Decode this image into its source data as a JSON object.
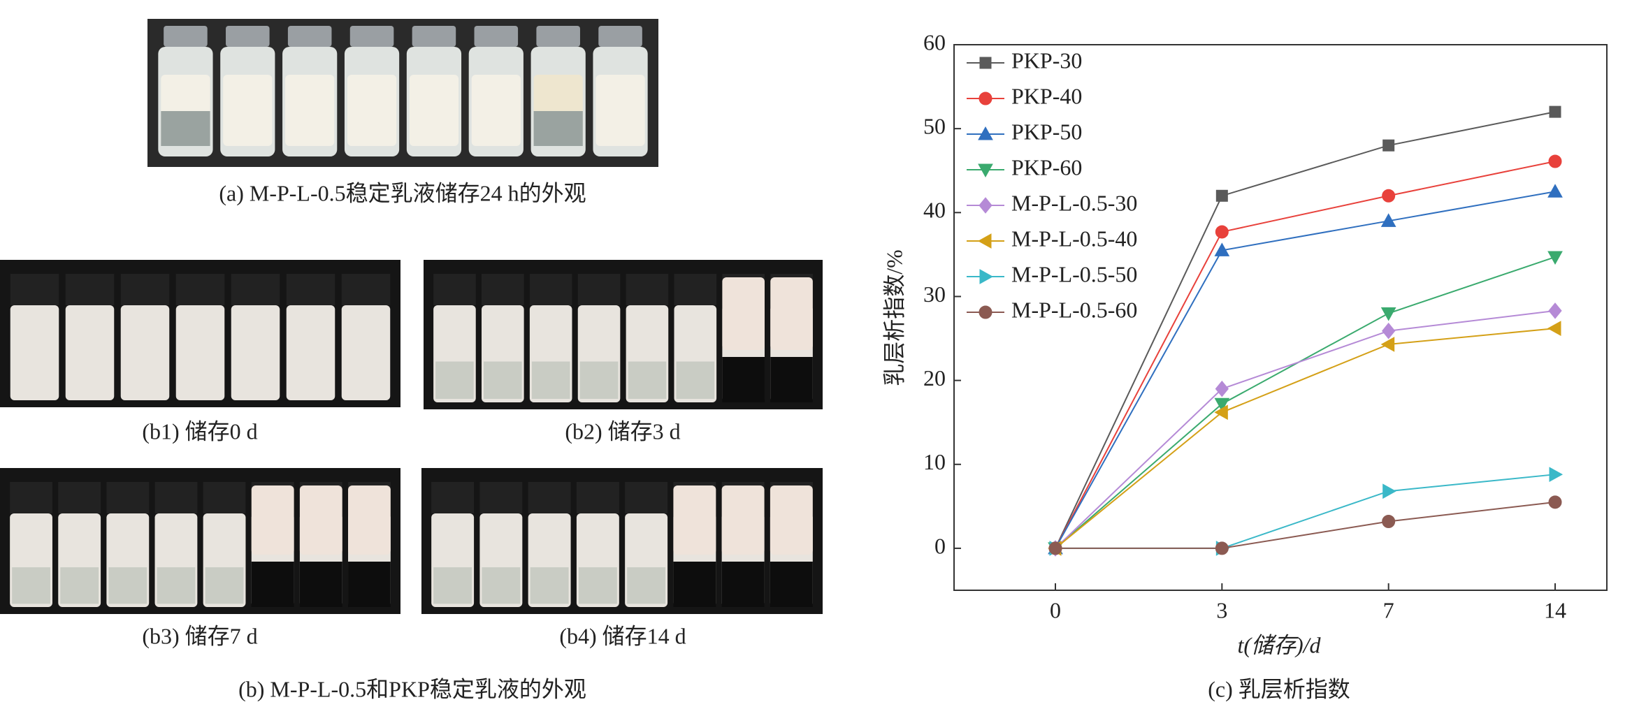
{
  "photos": {
    "a": {
      "caption": "(a) M-P-L-0.5稳定乳液储存24 h的外观"
    },
    "b1": {
      "caption": "(b1) 储存0 d"
    },
    "b2": {
      "caption": "(b2) 储存3 d"
    },
    "b3": {
      "caption": "(b3) 储存7 d"
    },
    "b4": {
      "caption": "(b4) 储存14 d"
    },
    "b": {
      "caption": "(b) M-P-L-0.5和PKP稳定乳液的外观"
    }
  },
  "chart_data": {
    "type": "line",
    "title": "(c) 乳层析指数",
    "x_label": "t(储存)/d",
    "y_label": "乳层析指数/%",
    "categories": [
      "0",
      "3",
      "7",
      "14"
    ],
    "ylim": [
      -5,
      60
    ],
    "yticks": [
      0,
      10,
      20,
      30,
      40,
      50,
      60
    ],
    "legend": "upper-left",
    "series": [
      {
        "name": "PKP-30",
        "color": "#5a5a5a",
        "marker": "square",
        "values": [
          0,
          42,
          48,
          52
        ]
      },
      {
        "name": "PKP-40",
        "color": "#e8413b",
        "marker": "circle",
        "values": [
          0,
          37.7,
          42,
          46.1
        ]
      },
      {
        "name": "PKP-50",
        "color": "#2f6fbf",
        "marker": "triangle-up",
        "values": [
          0,
          35.5,
          39,
          42.5
        ]
      },
      {
        "name": "PKP-60",
        "color": "#3aaa6e",
        "marker": "triangle-down",
        "values": [
          0,
          17.2,
          28,
          34.7
        ]
      },
      {
        "name": "M-P-L-0.5-30",
        "color": "#b58ad6",
        "marker": "diamond",
        "values": [
          0,
          19,
          25.9,
          28.3
        ]
      },
      {
        "name": "M-P-L-0.5-40",
        "color": "#d4a017",
        "marker": "triangle-left",
        "values": [
          0,
          16.2,
          24.3,
          26.2
        ]
      },
      {
        "name": "M-P-L-0.5-50",
        "color": "#3ab8c8",
        "marker": "triangle-right",
        "values": [
          0,
          0,
          6.8,
          8.8
        ]
      },
      {
        "name": "M-P-L-0.5-60",
        "color": "#8b5a52",
        "marker": "circle",
        "values": [
          0,
          0,
          3.2,
          5.5
        ]
      }
    ]
  }
}
